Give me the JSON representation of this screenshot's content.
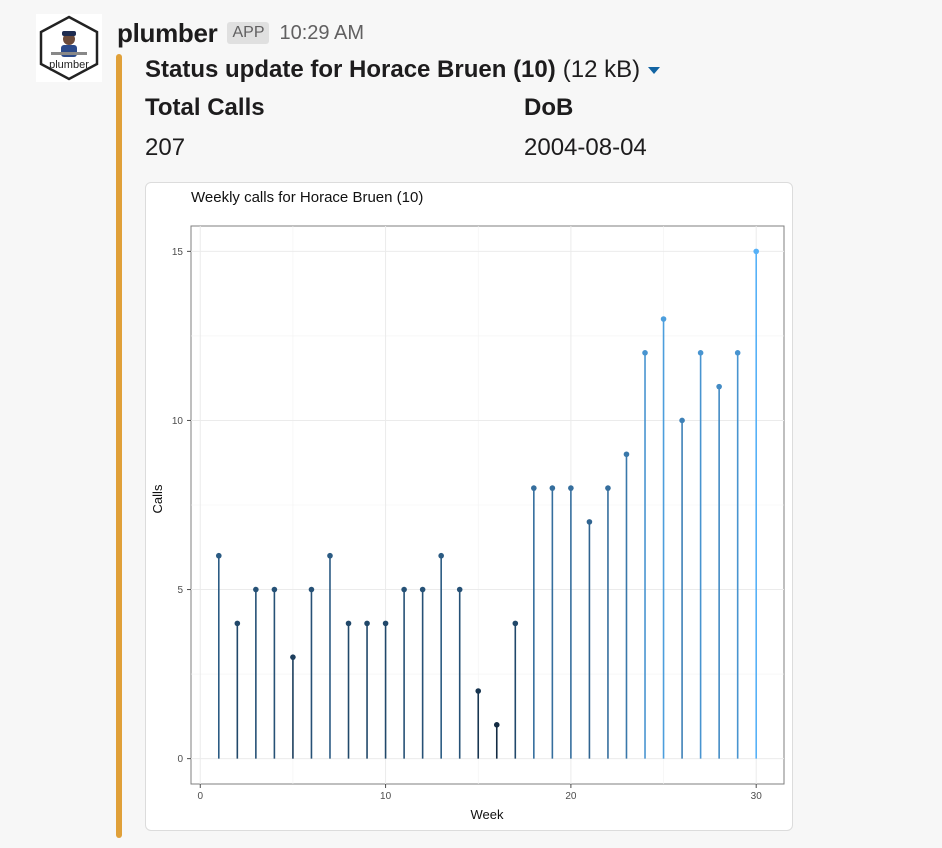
{
  "message": {
    "bot_name": "plumber",
    "app_badge": "APP",
    "timestamp": "10:29 AM",
    "avatar_text": "plumber"
  },
  "attachment": {
    "title": "Status update for Horace Bruen (10)",
    "file_size": "(12 kB)",
    "accent_color": "#e0a039",
    "fields": [
      {
        "label": "Total Calls",
        "value": "207"
      },
      {
        "label": "DoB",
        "value": "2004-08-04"
      }
    ]
  },
  "chart_data": {
    "type": "lollipop",
    "title": "Weekly calls for Horace Bruen (10)",
    "xlabel": "Week",
    "ylabel": "Calls",
    "x": [
      1,
      2,
      3,
      4,
      5,
      6,
      7,
      8,
      9,
      10,
      11,
      12,
      13,
      14,
      15,
      16,
      17,
      18,
      19,
      20,
      21,
      22,
      23,
      24,
      25,
      26,
      27,
      28,
      29,
      30
    ],
    "values": [
      6,
      4,
      5,
      5,
      3,
      5,
      6,
      4,
      4,
      4,
      5,
      5,
      6,
      5,
      2,
      1,
      4,
      8,
      8,
      8,
      7,
      8,
      9,
      12,
      13,
      10,
      12,
      11,
      12,
      15
    ],
    "xlim": [
      -0.5,
      31.5
    ],
    "ylim": [
      -0.75,
      15.75
    ],
    "xticks": [
      0,
      10,
      20,
      30
    ],
    "yticks": [
      0,
      5,
      10,
      15
    ],
    "grid": true,
    "color_scale": {
      "low": "#132b43",
      "high": "#56b1f7"
    }
  }
}
